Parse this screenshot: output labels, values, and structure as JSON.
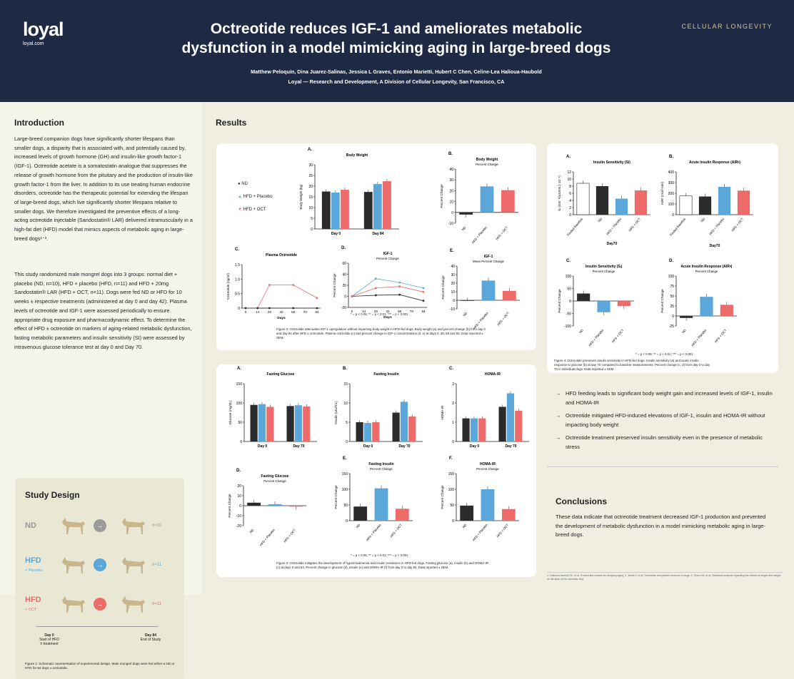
{
  "header": {
    "logo": "loyal",
    "site": "loyal.com",
    "title_line1": "Octreotide reduces IGF-1 and ameliorates metabolic",
    "title_line2": "dysfunction in a model mimicking aging in large-breed dogs",
    "authors": "Matthew Peloquin, Dina Juarez-Salinas, Jessica L Graves, Entonio Marietti, Hubert C Chen, Celine-Lea Halioua-Haubold",
    "affiliation": "Loyal — Research and Development, A Division of Cellular Longevity, San Francisco, CA",
    "brand": "CELLULAR LONGEVITY"
  },
  "intro": {
    "heading": "Introduction",
    "p1": "Large-breed companion dogs have significantly shorter lifespans than smaller dogs, a disparity that is associated with, and potentially caused by, increased levels of growth hormone (GH) and insulin-like growth factor-1 (IGF-1). Octreotide acetate is a somatostatin analogue that suppresses the release of growth hormone from the pituitary and the production of insulin-like growth factor-1 from the liver. In addition to its use treating human endocrine disorders, octreotide has the therapeutic potential for extending the lifespan of large-breed dogs, which live significantly shorter lifespans relative to smaller dogs. We therefore investigated the preventive effects of a long-acting octreotide injectable (Sandostatin® LAR) delivered intramuscularly in a high-fat diet (HFD) model that mimics aspects of metabolic aging in large-breed dogs¹⁻³.",
    "p2": "This study randomized male mongrel dogs into 3 groups: normal diet + placebo (ND, n=10), HFD + placebo (HFD, n=11) and HFD + 20mg Sandostatin® LAR (HFD + OCT, n=11). Dogs were fed ND or HFD for 10 weeks ± respective treatments (administered at day 0 and day 42). Plasma levels of octreotide and IGF-1 were assessed periodically to ensure appropriate drug exposure and pharmacodynamic effect. To determine the effect of HFD ± octreotide on markers of aging-related metabolic dysfunction, fasting metabolic parameters and insulin sensitivity (SI) were assessed by intravenous glucose tolerance test at day 0 and Day 70."
  },
  "study": {
    "heading": "Study Design",
    "groups": [
      {
        "name": "ND",
        "sub": "",
        "n": "n=10"
      },
      {
        "name": "HFD",
        "sub": "+ Placebo",
        "n": "n=11"
      },
      {
        "name": "HFD",
        "sub": "+ OCT",
        "n": "n=11"
      }
    ],
    "arrow": "→",
    "t0a": "Day 0",
    "t0b": "Start of HFD",
    "t0c": "± treatment",
    "t1a": "Day 84",
    "t1b": "End of Study",
    "caption": "Figure 1: Schematic representation of experimental design. Male mongrel dogs were fed either a ND or HFD for 84 days ± octreotide."
  },
  "results_heading": "Results",
  "colors": {
    "nd": "#2b2b2b",
    "hfd": "#5ba7d9",
    "oct": "#ee6b6b",
    "navy": "#1e2a44"
  },
  "legend": {
    "nd": "ND",
    "hfd": "HFD + Placebo",
    "oct": "HFD + OCT"
  },
  "groups": [
    "ND",
    "HFD + Placebo",
    "HFD + OCT"
  ],
  "sig": {
    "s1": "*",
    "s2": "**",
    "s3": "***",
    "note": "* = p < 0.05; ** = p < 0.01; *** = p < 0.001"
  },
  "fig2": {
    "caption": "Figure 2: Octreotide attenuates IGF-1 upregulation without impacting body weight in HFD-fed dogs. Body weight (a) and percent change (b) from day 0 and day 84 after HFD ± octreotide. Plasma octreotide (c) and percent change in IGF-1 concentrations (d, e) at days 0, 28, 56 and 84. Data reported ± SEM.",
    "A": {
      "letter": "A.",
      "title": "Body Weight",
      "ylabel": "Body Weight (kg)",
      "ylim": [
        0,
        30
      ],
      "yticks": [
        "0",
        "5",
        "10",
        "15",
        "20",
        "25",
        "30"
      ],
      "cats": [
        "Day 0",
        "Day 84"
      ],
      "data": [
        [
          17.5,
          17,
          18.3
        ],
        [
          17.3,
          21,
          22.3
        ]
      ]
    },
    "B": {
      "letter": "B.",
      "title": "Body Weight",
      "sub": "Percent Change",
      "ylabel": "Percent Change",
      "ylim": [
        -10,
        40
      ],
      "yticks": [
        "-10",
        "0",
        "10",
        "20",
        "30",
        "40"
      ],
      "data": [
        -2,
        24,
        20.5
      ]
    },
    "C": {
      "letter": "C.",
      "title": "Plasma Octreotide",
      "ylabel": "Octreotide (ng/ml)",
      "xlabel": "Days",
      "ylim": [
        0,
        1.5
      ],
      "yticks": [
        "0",
        "0.5",
        "1.0",
        "1.5"
      ],
      "x": [
        0,
        14,
        28,
        42,
        56,
        70,
        84
      ],
      "xticks": [
        "0",
        "14",
        "28",
        "42",
        "56",
        "70",
        "84"
      ],
      "oct": [
        0,
        0,
        0.8,
        0.8,
        0.35
      ],
      "octx": [
        0,
        14,
        28,
        56,
        84
      ],
      "nd": [
        0,
        0,
        0,
        0,
        0
      ]
    },
    "D": {
      "letter": "D.",
      "title": "IGF-1",
      "sub": "Percent Change",
      "ylabel": "Percent Change",
      "xlabel": "Days",
      "ylim": [
        -20,
        60
      ],
      "yticks": [
        "-20",
        "0",
        "20",
        "40",
        "60"
      ],
      "xticks": [
        "0",
        "14",
        "28",
        "42",
        "56",
        "70",
        "84"
      ],
      "x": [
        0,
        28,
        56,
        84
      ],
      "nd": [
        0,
        2,
        3,
        -8
      ],
      "hfd": [
        0,
        32,
        25,
        15
      ],
      "oct": [
        0,
        15,
        18,
        8
      ]
    },
    "E": {
      "letter": "E.",
      "title": "IGF-1",
      "sub": "Mean Percent Change",
      "ylabel": "Percent Change",
      "ylim": [
        -10,
        40
      ],
      "yticks": [
        "-10",
        "0",
        "10",
        "20",
        "30",
        "40"
      ],
      "data": [
        0,
        23,
        11
      ]
    }
  },
  "fig3": {
    "caption": "Figure 3: Octreotide mitigates the development of hyperinsulinemia and insulin resistance in HFD-fed dogs. Fasting glucose (a), insulin (b) and HOMA-IR (c) at days 0 and 84. Percent change in glucose (d), insulin (e) and HOMA-IR (f) from day 0 to day 84. Data reported ± SEM.",
    "A": {
      "letter": "A.",
      "title": "Fasting Glucose",
      "ylabel": "Glucose (mg/dL)",
      "ylim": [
        0,
        150
      ],
      "yticks": [
        "0",
        "50",
        "100",
        "150"
      ],
      "cats": [
        "Day 0",
        "Day 70"
      ],
      "data": [
        [
          95,
          97,
          90
        ],
        [
          92,
          94,
          91
        ]
      ]
    },
    "B": {
      "letter": "B.",
      "title": "Fasting Insulin",
      "ylabel": "Insulin (uIU/mL)",
      "ylim": [
        0,
        15
      ],
      "yticks": [
        "0",
        "5",
        "10",
        "15"
      ],
      "cats": [
        "Day 0",
        "Day 70"
      ],
      "data": [
        [
          5,
          4.8,
          5
        ],
        [
          7.5,
          10.3,
          6.5
        ]
      ]
    },
    "C": {
      "letter": "C.",
      "title": "HOMA-IR",
      "ylabel": "HOMA-IR",
      "ylim": [
        0,
        3
      ],
      "yticks": [
        "0",
        "1",
        "2",
        "3"
      ],
      "cats": [
        "Day 0",
        "Day 70"
      ],
      "data": [
        [
          1.2,
          1.2,
          1.2
        ],
        [
          1.8,
          2.5,
          1.6
        ]
      ]
    },
    "D": {
      "letter": "D.",
      "title": "Fasting Glucose",
      "sub": "Percent Change",
      "ylabel": "Percent Change",
      "ylim": [
        -20,
        20
      ],
      "yticks": [
        "-20",
        "-10",
        "0",
        "10",
        "20"
      ],
      "data": [
        3,
        1.5,
        -1
      ]
    },
    "E": {
      "letter": "E.",
      "title": "Fasting Insulin",
      "sub": "Percent Change",
      "ylabel": "Percent Change",
      "ylim": [
        0,
        150
      ],
      "yticks": [
        "0",
        "50",
        "100",
        "150"
      ],
      "data": [
        45,
        103,
        38
      ]
    },
    "F": {
      "letter": "F.",
      "title": "HOMA-IR",
      "sub": "Percent Change",
      "ylabel": "Percent Change",
      "ylim": [
        0,
        150
      ],
      "yticks": [
        "0",
        "50",
        "100",
        "150"
      ],
      "data": [
        48,
        100,
        37
      ]
    }
  },
  "fig4": {
    "caption": "Figure 4: Octreotide preserves insulin sensitivity in HFD-fed dogs. Insulin sensitivity (a) and acute insulin response to glucose (b) at day 70 compared to baseline measurements. Percent change (c, d) from day 0 to day 70 in individual dogs. Data reported ± SEM.",
    "A": {
      "letter": "A.",
      "title": "Insulin Sensitivity (Si)",
      "ylabel": "Sᵢ (min⁻¹/(uIU/mL)·10⁻⁴)",
      "ylim": [
        0,
        12
      ],
      "yticks": [
        "0",
        "2",
        "4",
        "6",
        "8",
        "10",
        "12"
      ],
      "cats": [
        "Pooled Baseline",
        "ND",
        "HFD + Placebo",
        "HFD + OCT"
      ],
      "xgroup": "Day70",
      "data": [
        8.8,
        8,
        4.5,
        6.8
      ]
    },
    "B": {
      "letter": "B.",
      "title": "Acute Insulin Response (AIRᵍ)",
      "ylabel": "AIRᵍ (mU/l·min)",
      "ylim": [
        0,
        400
      ],
      "yticks": [
        "0",
        "100",
        "200",
        "300",
        "400"
      ],
      "cats": [
        "Pooled Baseline",
        "ND",
        "HFD + Placebo",
        "HFD + OCT"
      ],
      "xgroup": "Day70",
      "data": [
        175,
        170,
        260,
        225
      ]
    },
    "C": {
      "letter": "C.",
      "title": "Insulin Sensitivity (Sᵢ)",
      "sub": "Percent Change",
      "ylabel": "Percent Change",
      "ylim": [
        -100,
        100
      ],
      "yticks": [
        "-100",
        "-50",
        "0",
        "50",
        "100"
      ],
      "data": [
        30,
        -45,
        -20
      ]
    },
    "D": {
      "letter": "D.",
      "title": "Acute Insulin Response (AIRᵍ)",
      "sub": "Percent Change",
      "ylabel": "Percent Change",
      "ylim": [
        -25,
        100
      ],
      "yticks": [
        "-25",
        "0",
        "25",
        "50",
        "75",
        "100"
      ],
      "data": [
        -5,
        48,
        28
      ]
    }
  },
  "bullets": [
    "HFD feeding leads to significant body weight gain and increased levels of IGF-1, insulin and HOMA-IR",
    "Octreotide mitigated HFD-induced elevations of IGF-1, insulin and HOMA-IR without impacting body weight",
    "Octreotide treatment preserved insulin sensitivity even in the presence of metabolic stress"
  ],
  "conclusions": {
    "heading": "Conclusions",
    "text": "These data indicate that octreotide treatment decreased IGF-1 production and prevented the development of metabolic dysfunction in a model mimicking metabolic aging in large-breed dogs."
  },
  "refs": "1. Halioua-Haubold CL, et al. Rodent-like models for studying aging. 2. Jezek J, et al. Octreotide and growth hormone in dogs. 3. Greer KA, et al. Statistical analysis regarding the effects of height and weight on life span of the domestic dog."
}
